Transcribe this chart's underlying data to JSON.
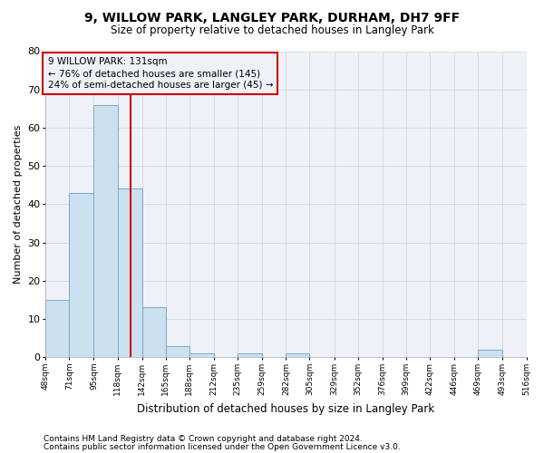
{
  "title": "9, WILLOW PARK, LANGLEY PARK, DURHAM, DH7 9FF",
  "subtitle": "Size of property relative to detached houses in Langley Park",
  "xlabel": "Distribution of detached houses by size in Langley Park",
  "ylabel": "Number of detached properties",
  "footnote1": "Contains HM Land Registry data © Crown copyright and database right 2024.",
  "footnote2": "Contains public sector information licensed under the Open Government Licence v3.0.",
  "annotation_line1": "9 WILLOW PARK: 131sqm",
  "annotation_line2": "← 76% of detached houses are smaller (145)",
  "annotation_line3": "24% of semi-detached houses are larger (45) →",
  "property_size": 131,
  "bin_edges": [
    48,
    71,
    95,
    118,
    142,
    165,
    188,
    212,
    235,
    259,
    282,
    305,
    329,
    352,
    376,
    399,
    422,
    446,
    469,
    493,
    516
  ],
  "bin_counts": [
    15,
    43,
    66,
    44,
    13,
    3,
    1,
    0,
    1,
    0,
    1,
    0,
    0,
    0,
    0,
    0,
    0,
    0,
    2,
    0
  ],
  "bar_color": "#cce0f0",
  "bar_edge_color": "#7aaac8",
  "vline_color": "#cc0000",
  "vline_x": 131,
  "annotation_box_color": "#cc0000",
  "grid_color": "#d0d8e0",
  "bg_color": "#eef2f8",
  "plot_bg_color": "#eef2f8",
  "ylim": [
    0,
    80
  ],
  "yticks": [
    0,
    10,
    20,
    30,
    40,
    50,
    60,
    70,
    80
  ]
}
